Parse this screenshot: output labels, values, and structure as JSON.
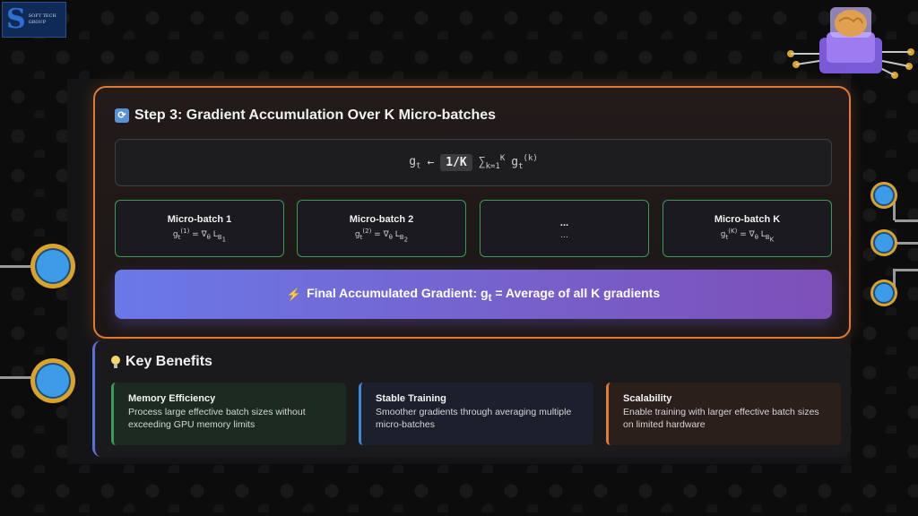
{
  "logo": {
    "letter": "S",
    "line1": "SOFT TECH",
    "line2": "GROUP"
  },
  "step": {
    "title": "Step 3: Gradient Accumulation Over K Micro-batches",
    "formula": {
      "lhs": "g",
      "lhs_sub": "t",
      "arrow": "←",
      "coef": "1/K",
      "sum": "∑",
      "sum_sub": "k=1",
      "sum_sup": "K",
      "rhs": "g",
      "rhs_sub": "t",
      "rhs_sup": "(k)"
    },
    "micro_batches": [
      {
        "title": "Micro-batch 1",
        "g": "g",
        "g_sub": "t",
        "g_sup": "(1)",
        "rest": " = ∇",
        "theta": "θ",
        "loss": " L",
        "loss_sub": "B",
        "loss_subsub": "1"
      },
      {
        "title": "Micro-batch 2",
        "g": "g",
        "g_sub": "t",
        "g_sup": "(2)",
        "rest": " = ∇",
        "theta": "θ",
        "loss": " L",
        "loss_sub": "B",
        "loss_subsub": "2"
      },
      {
        "title": "...",
        "plain": "..."
      },
      {
        "title": "Micro-batch K",
        "g": "g",
        "g_sub": "t",
        "g_sup": "(K)",
        "rest": " = ∇",
        "theta": "θ",
        "loss": " L",
        "loss_sub": "B",
        "loss_subsub": "K"
      }
    ],
    "final_prefix": "Final Accumulated Gradient: ",
    "final_g": "g",
    "final_sub": "t",
    "final_suffix": " = Average of all K gradients"
  },
  "benefits": {
    "title": "Key Benefits",
    "items": [
      {
        "heading": "Memory Efficiency",
        "text": "Process large effective batch sizes without exceeding GPU memory limits"
      },
      {
        "heading": "Stable Training",
        "text": "Smoother gradients through averaging multiple micro-batches"
      },
      {
        "heading": "Scalability",
        "text": "Enable training with larger effective batch sizes on limited hardware"
      }
    ]
  },
  "colors": {
    "accent_orange": "#e07a33",
    "accent_green": "#3a9a58",
    "accent_blue": "#3f87d6",
    "gradient_start": "#6a79e8",
    "gradient_end": "#7d4fb8"
  }
}
